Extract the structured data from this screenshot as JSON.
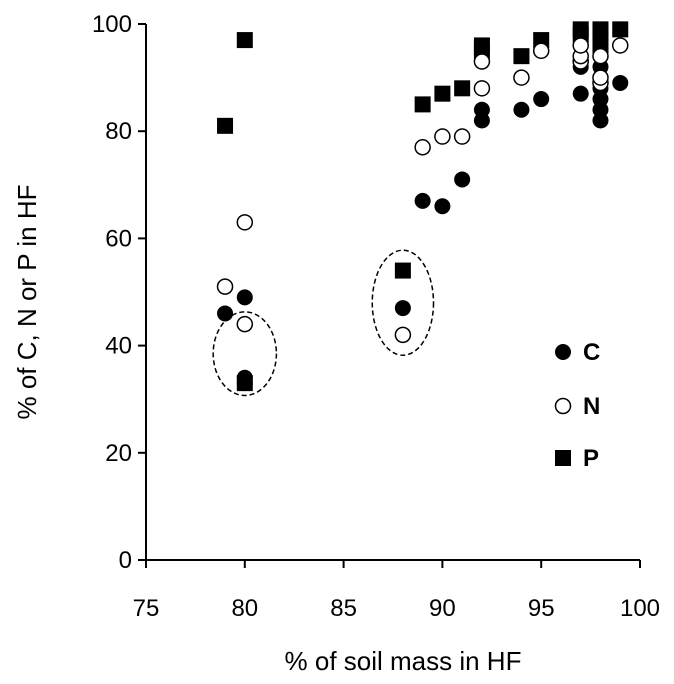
{
  "chart_data": {
    "type": "scatter",
    "xlabel": "% of soil mass in HF",
    "ylabel": "% of C, N or P in HF",
    "xlim": [
      75,
      100
    ],
    "ylim": [
      0,
      100
    ],
    "xticks": [
      "75",
      "80",
      "85",
      "90",
      "95",
      "100"
    ],
    "yticks": [
      "0",
      "20",
      "40",
      "60",
      "80",
      "100"
    ],
    "legend_position": "right",
    "grid": false,
    "series": [
      {
        "name": "C",
        "marker": "filled-circle",
        "color": "#000000",
        "points": [
          [
            79,
            46
          ],
          [
            80,
            49
          ],
          [
            80,
            34
          ],
          [
            80,
            33
          ],
          [
            88,
            47
          ],
          [
            89,
            67
          ],
          [
            90,
            66
          ],
          [
            91,
            71
          ],
          [
            92,
            82
          ],
          [
            92,
            84
          ],
          [
            94,
            84
          ],
          [
            95,
            86
          ],
          [
            97,
            87
          ],
          [
            97,
            92
          ],
          [
            97,
            93
          ],
          [
            98,
            82
          ],
          [
            98,
            84
          ],
          [
            98,
            86
          ],
          [
            98,
            88
          ],
          [
            98,
            90
          ],
          [
            98,
            92
          ],
          [
            99,
            89
          ]
        ]
      },
      {
        "name": "N",
        "marker": "open-circle",
        "color": "#000000",
        "points": [
          [
            79,
            51
          ],
          [
            80,
            63
          ],
          [
            80,
            44
          ],
          [
            88,
            42
          ],
          [
            89,
            77
          ],
          [
            90,
            79
          ],
          [
            91,
            79
          ],
          [
            92,
            88
          ],
          [
            92,
            93
          ],
          [
            94,
            90
          ],
          [
            95,
            95
          ],
          [
            97,
            93
          ],
          [
            97,
            94
          ],
          [
            97,
            96
          ],
          [
            98,
            89
          ],
          [
            98,
            90
          ],
          [
            98,
            94
          ],
          [
            99,
            96
          ]
        ]
      },
      {
        "name": "P",
        "marker": "filled-square",
        "color": "#000000",
        "points": [
          [
            79,
            81
          ],
          [
            80,
            97
          ],
          [
            80,
            33
          ],
          [
            88,
            54
          ],
          [
            89,
            85
          ],
          [
            90,
            87
          ],
          [
            91,
            88
          ],
          [
            92,
            95
          ],
          [
            92,
            96
          ],
          [
            94,
            94
          ],
          [
            95,
            97
          ],
          [
            97,
            98
          ],
          [
            97,
            99
          ],
          [
            98,
            96
          ],
          [
            98,
            98
          ],
          [
            98,
            99
          ],
          [
            99,
            99
          ]
        ]
      }
    ],
    "annotations": [
      {
        "type": "dashed-ellipse",
        "cx": 80,
        "cy": 38.5,
        "rx": 1.6,
        "ry": 7.8
      },
      {
        "type": "dashed-ellipse",
        "cx": 88,
        "cy": 48,
        "rx": 1.55,
        "ry": 9.8
      }
    ]
  }
}
